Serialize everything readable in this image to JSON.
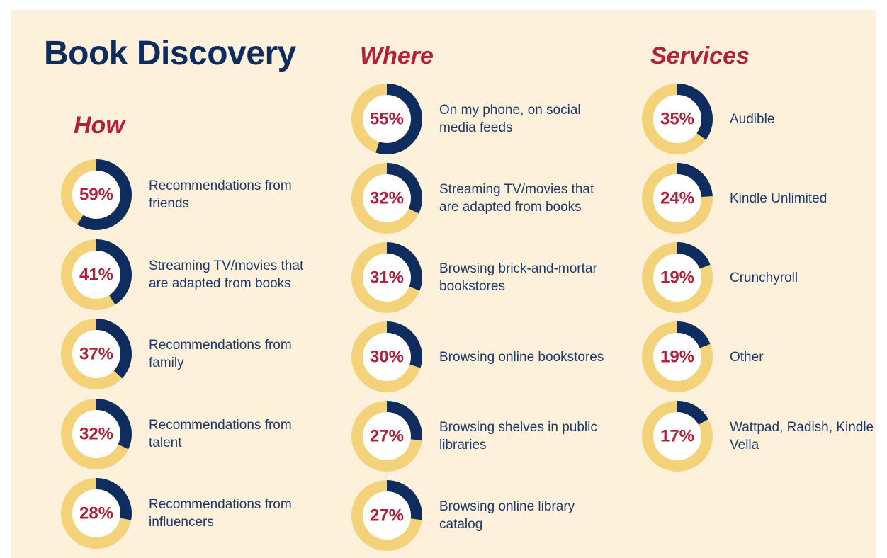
{
  "title": "Book Discovery",
  "colors": {
    "track": "#f3d27a",
    "fill": "#0e2d5e",
    "percent_text": "#b3203c",
    "heading": "#b3203c",
    "title": "#0e2d5e",
    "background": "#fdf1dc"
  },
  "sections": {
    "how": {
      "title": "How",
      "items": [
        {
          "label": "Recommendations from friends",
          "value": 59,
          "percent_label": "59%"
        },
        {
          "label": "Streaming TV/movies that are adapted from books",
          "value": 41,
          "percent_label": "41%"
        },
        {
          "label": "Recommendations from family",
          "value": 37,
          "percent_label": "37%"
        },
        {
          "label": "Recommendations from talent",
          "value": 32,
          "percent_label": "32%"
        },
        {
          "label": "Recommendations from influencers",
          "value": 28,
          "percent_label": "28%"
        }
      ]
    },
    "where": {
      "title": "Where",
      "items": [
        {
          "label": "On my phone, on social media feeds",
          "value": 55,
          "percent_label": "55%"
        },
        {
          "label": "Streaming TV/movies that are adapted from books",
          "value": 32,
          "percent_label": "32%"
        },
        {
          "label": "Browsing brick-and-mortar bookstores",
          "value": 31,
          "percent_label": "31%"
        },
        {
          "label": "Browsing online bookstores",
          "value": 30,
          "percent_label": "30%"
        },
        {
          "label": "Browsing shelves in public libraries",
          "value": 27,
          "percent_label": "27%"
        },
        {
          "label": "Browsing online library catalog",
          "value": 27,
          "percent_label": "27%"
        }
      ]
    },
    "services": {
      "title": "Services",
      "items": [
        {
          "label": "Audible",
          "value": 35,
          "percent_label": "35%"
        },
        {
          "label": "Kindle Unlimited",
          "value": 24,
          "percent_label": "24%"
        },
        {
          "label": "Crunchyroll",
          "value": 19,
          "percent_label": "19%"
        },
        {
          "label": "Other",
          "value": 19,
          "percent_label": "19%"
        },
        {
          "label": "Wattpad, Radish, Kindle Vella",
          "value": 17,
          "percent_label": "17%"
        }
      ]
    }
  },
  "chart_data": {
    "type": "pie",
    "title": "Book Discovery",
    "groups": [
      {
        "name": "How",
        "categories": [
          "Recommendations from friends",
          "Streaming TV/movies that are adapted from books",
          "Recommendations from family",
          "Recommendations from talent",
          "Recommendations from influencers"
        ],
        "values": [
          59,
          41,
          37,
          32,
          28
        ]
      },
      {
        "name": "Where",
        "categories": [
          "On my phone, on social media feeds",
          "Streaming TV/movies that are adapted from books",
          "Browsing brick-and-mortar bookstores",
          "Browsing online bookstores",
          "Browsing shelves in public libraries",
          "Browsing online library catalog"
        ],
        "values": [
          55,
          32,
          31,
          30,
          27,
          27
        ]
      },
      {
        "name": "Services",
        "categories": [
          "Audible",
          "Kindle Unlimited",
          "Crunchyroll",
          "Other",
          "Wattpad, Radish, Kindle Vella"
        ],
        "values": [
          35,
          24,
          19,
          19,
          17
        ]
      }
    ],
    "unit": "%"
  }
}
